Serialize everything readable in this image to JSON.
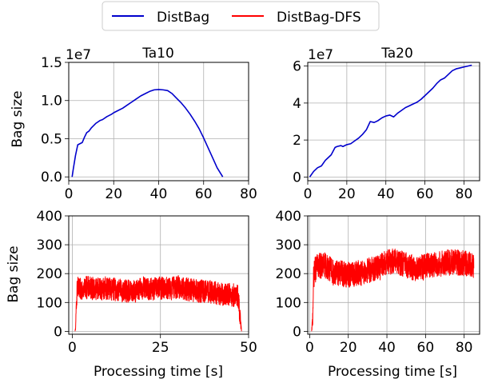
{
  "legend": {
    "placement": "top-center",
    "entries": [
      {
        "label": "DistBag",
        "color": "#0000cc"
      },
      {
        "label": "DistBag-DFS",
        "color": "#ff0000"
      }
    ]
  },
  "chart_data": [
    {
      "type": "line",
      "title": "Ta10",
      "xlabel": "",
      "ylabel": "Bag size",
      "y_multiplier": "1e7",
      "xlim": [
        0,
        80
      ],
      "ylim": [
        -0.05,
        1.5
      ],
      "xticks": [
        "0",
        "20",
        "40",
        "60",
        "80"
      ],
      "yticks": [
        "0.0",
        "0.5",
        "1.0",
        "1.5"
      ],
      "grid": true,
      "series": [
        {
          "name": "DistBag",
          "color": "#0000cc",
          "x": [
            1.5,
            2,
            3,
            4,
            6,
            7,
            8,
            9,
            10,
            12,
            14,
            15,
            17,
            19,
            20,
            22,
            24,
            26,
            28,
            30,
            32,
            34,
            36,
            38,
            40,
            42,
            44,
            46,
            48,
            50,
            52,
            54,
            56,
            58,
            60,
            62,
            64,
            66,
            68.5
          ],
          "y": [
            0.0,
            0.1,
            0.28,
            0.42,
            0.45,
            0.52,
            0.58,
            0.6,
            0.64,
            0.7,
            0.74,
            0.75,
            0.79,
            0.82,
            0.84,
            0.87,
            0.9,
            0.94,
            0.98,
            1.02,
            1.06,
            1.09,
            1.12,
            1.14,
            1.145,
            1.14,
            1.13,
            1.09,
            1.03,
            0.97,
            0.9,
            0.82,
            0.73,
            0.63,
            0.51,
            0.38,
            0.25,
            0.12,
            0.0
          ]
        }
      ]
    },
    {
      "type": "line",
      "title": "Ta20",
      "xlabel": "",
      "ylabel": "",
      "y_multiplier": "1e7",
      "xlim": [
        0,
        88
      ],
      "ylim": [
        -0.2,
        6.2
      ],
      "xticks": [
        "0",
        "20",
        "40",
        "60",
        "80"
      ],
      "yticks": [
        "0",
        "2",
        "4",
        "6"
      ],
      "grid": true,
      "series": [
        {
          "name": "DistBag",
          "color": "#0000cc",
          "x": [
            1,
            3,
            5,
            7,
            9,
            10,
            12,
            14,
            15,
            17,
            18,
            20,
            22,
            24,
            26,
            28,
            30,
            32,
            34,
            36,
            38,
            40,
            42,
            44,
            46,
            48,
            50,
            52,
            54,
            56,
            58,
            60,
            62,
            64,
            66,
            68,
            70,
            72,
            74,
            76,
            78,
            80,
            82,
            84
          ],
          "y": [
            0.0,
            0.3,
            0.5,
            0.6,
            0.9,
            1.0,
            1.2,
            1.6,
            1.65,
            1.7,
            1.65,
            1.75,
            1.8,
            1.95,
            2.1,
            2.3,
            2.55,
            3.0,
            2.95,
            3.05,
            3.2,
            3.3,
            3.35,
            3.25,
            3.45,
            3.6,
            3.75,
            3.85,
            3.95,
            4.05,
            4.2,
            4.4,
            4.6,
            4.8,
            5.05,
            5.25,
            5.35,
            5.55,
            5.75,
            5.85,
            5.9,
            5.95,
            6.0,
            6.05
          ]
        }
      ]
    },
    {
      "type": "line",
      "title": "",
      "xlabel": "Processing time [s]",
      "ylabel": "Bag size",
      "xlim": [
        -1,
        50
      ],
      "ylim": [
        -10,
        400
      ],
      "xticks": [
        "0",
        "25",
        "50"
      ],
      "yticks": [
        "0",
        "100",
        "200",
        "300",
        "400"
      ],
      "grid": true,
      "series": [
        {
          "name": "DistBag-DFS",
          "color": "#ff0000",
          "x": [
            0.8,
            1.0,
            1.2,
            1.5,
            2.0,
            3.0,
            5.0,
            8.0,
            10.0,
            12.0,
            15.0,
            18.0,
            20.0,
            22.0,
            25.0,
            28.0,
            30.0,
            33.0,
            35.0,
            38.0,
            40.0,
            42.0,
            44.0,
            46.0,
            47.0,
            47.5,
            48.0
          ],
          "y": [
            0,
            20,
            120,
            150,
            140,
            155,
            150,
            148,
            150,
            145,
            140,
            138,
            150,
            145,
            150,
            148,
            155,
            145,
            140,
            138,
            135,
            130,
            128,
            125,
            120,
            60,
            0
          ],
          "noise_amplitude": 40
        }
      ]
    },
    {
      "type": "line",
      "title": "",
      "xlabel": "Processing time [s]",
      "ylabel": "",
      "xlim": [
        -1,
        88
      ],
      "ylim": [
        -10,
        400
      ],
      "xticks": [
        "0",
        "20",
        "40",
        "60",
        "80"
      ],
      "yticks": [
        "0",
        "100",
        "200",
        "300",
        "400"
      ],
      "grid": true,
      "series": [
        {
          "name": "DistBag-DFS",
          "color": "#ff0000",
          "x": [
            1.0,
            1.5,
            2.0,
            2.5,
            4.0,
            8.0,
            12.0,
            16.0,
            20.0,
            24.0,
            28.0,
            32.0,
            36.0,
            40.0,
            44.0,
            48.0,
            52.0,
            56.0,
            60.0,
            64.0,
            68.0,
            72.0,
            76.0,
            80.0,
            84.0,
            85.0
          ],
          "y": [
            0,
            40,
            180,
            210,
            225,
            230,
            205,
            200,
            195,
            200,
            205,
            215,
            220,
            240,
            245,
            235,
            225,
            215,
            225,
            230,
            235,
            238,
            240,
            235,
            232,
            230
          ],
          "noise_amplitude": 45
        }
      ]
    }
  ]
}
